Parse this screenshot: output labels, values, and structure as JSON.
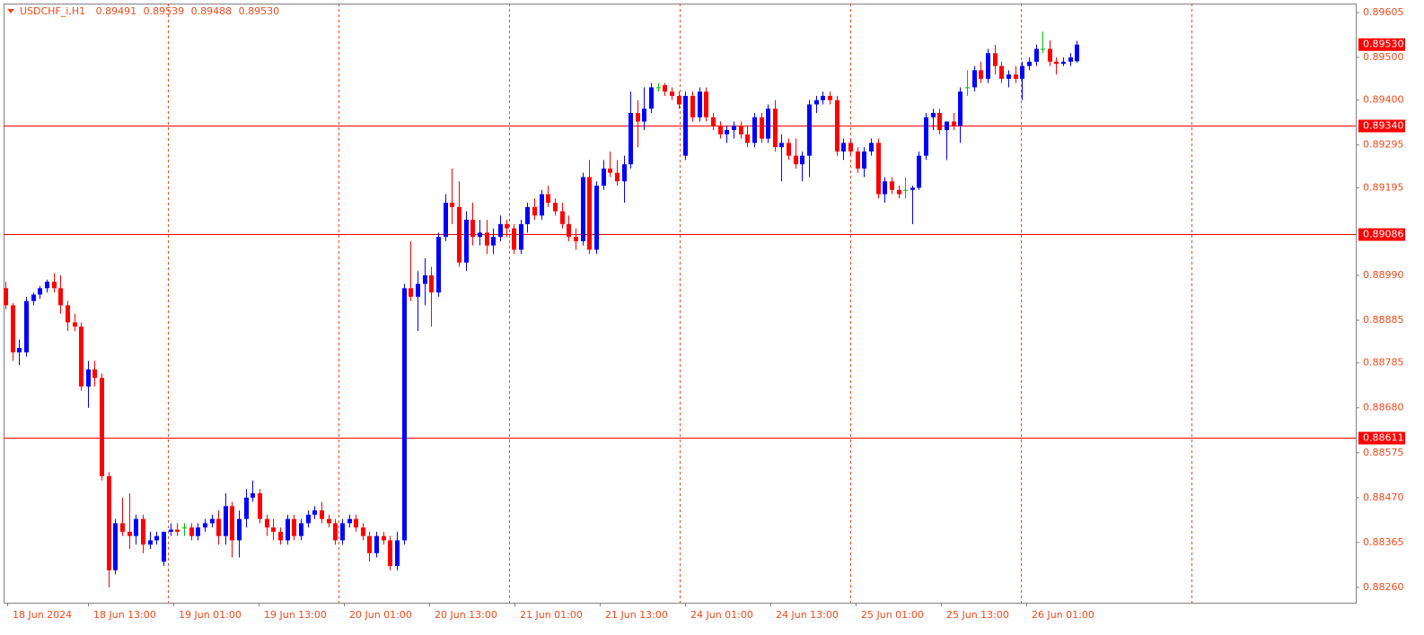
{
  "chart_data": {
    "type": "candlestick",
    "title": "USDCHF_i,H1",
    "last_close_label": "0.89530",
    "up_color": "#0000ff",
    "down_color": "#ff0000",
    "doji_color": "#00c000",
    "level_color": "#ff0000",
    "period_separators": true,
    "ylim": [
      0.88224,
      0.89626
    ],
    "yticks": [
      {
        "value": 0.89605,
        "label": "0.89605"
      },
      {
        "value": 0.895,
        "label": "0.89500"
      },
      {
        "value": 0.894,
        "label": "0.89400"
      },
      {
        "value": 0.89295,
        "label": "0.89295"
      },
      {
        "value": 0.89195,
        "label": "0.89195"
      },
      {
        "value": 0.8899,
        "label": "0.88990"
      },
      {
        "value": 0.88885,
        "label": "0.88885"
      },
      {
        "value": 0.88785,
        "label": "0.88785"
      },
      {
        "value": 0.8868,
        "label": "0.88680"
      },
      {
        "value": 0.88575,
        "label": "0.88575"
      },
      {
        "value": 0.8847,
        "label": "0.88470"
      },
      {
        "value": 0.88365,
        "label": "0.88365"
      },
      {
        "value": 0.8826,
        "label": "0.88260"
      }
    ],
    "levels": [
      {
        "value": 0.8934,
        "label": "0.89340"
      },
      {
        "value": 0.89086,
        "label": "0.89086"
      },
      {
        "value": 0.88611,
        "label": "0.88611"
      }
    ],
    "x_labels": [
      "18 Jun 2024",
      "18 Jun 13:00",
      "19 Jun 01:00",
      "19 Jun 13:00",
      "20 Jun 01:00",
      "20 Jun 13:00",
      "21 Jun 01:00",
      "21 Jun 13:00",
      "24 Jun 01:00",
      "24 Jun 13:00",
      "25 Jun 01:00",
      "25 Jun 13:00",
      "26 Jun 01:00"
    ],
    "candles": [
      [
        0.8896,
        0.88975,
        0.8891,
        0.8892
      ],
      [
        0.8892,
        0.88925,
        0.8879,
        0.8881
      ],
      [
        0.8881,
        0.8884,
        0.8878,
        0.8882
      ],
      [
        0.8881,
        0.8894,
        0.888,
        0.8893
      ],
      [
        0.8893,
        0.8895,
        0.8892,
        0.88945
      ],
      [
        0.88945,
        0.88965,
        0.88935,
        0.8896
      ],
      [
        0.8896,
        0.8898,
        0.8895,
        0.88975
      ],
      [
        0.88975,
        0.88995,
        0.8895,
        0.8896
      ],
      [
        0.8896,
        0.8899,
        0.889,
        0.8892
      ],
      [
        0.8892,
        0.8893,
        0.8886,
        0.8888
      ],
      [
        0.8888,
        0.889,
        0.8886,
        0.8887
      ],
      [
        0.8887,
        0.8888,
        0.8872,
        0.8873
      ],
      [
        0.8873,
        0.8879,
        0.8868,
        0.8877
      ],
      [
        0.8877,
        0.8879,
        0.8873,
        0.8875
      ],
      [
        0.8875,
        0.8876,
        0.8851,
        0.8852
      ],
      [
        0.8852,
        0.8853,
        0.8826,
        0.883
      ],
      [
        0.883,
        0.8842,
        0.8829,
        0.8841
      ],
      [
        0.8841,
        0.8847,
        0.8838,
        0.8839
      ],
      [
        0.8839,
        0.8848,
        0.8835,
        0.8838
      ],
      [
        0.8838,
        0.8843,
        0.8836,
        0.8842
      ],
      [
        0.8842,
        0.8843,
        0.8834,
        0.8836
      ],
      [
        0.8836,
        0.8839,
        0.8835,
        0.8837
      ],
      [
        0.8837,
        0.8839,
        0.8836,
        0.8838
      ],
      [
        0.8832,
        0.8839,
        0.8831,
        0.8839
      ],
      [
        0.8839,
        0.8841,
        0.8838,
        0.88395
      ],
      [
        0.88395,
        0.8841,
        0.8838,
        0.8839
      ],
      [
        0.884,
        0.8841,
        0.8838,
        0.884
      ],
      [
        0.884,
        0.8841,
        0.8837,
        0.8838
      ],
      [
        0.8838,
        0.8841,
        0.8837,
        0.884
      ],
      [
        0.884,
        0.8842,
        0.8839,
        0.8841
      ],
      [
        0.8841,
        0.8843,
        0.884,
        0.8842
      ],
      [
        0.8842,
        0.8844,
        0.8836,
        0.8838
      ],
      [
        0.8838,
        0.8848,
        0.8836,
        0.8845
      ],
      [
        0.8845,
        0.8846,
        0.8833,
        0.8837
      ],
      [
        0.8837,
        0.8844,
        0.8833,
        0.8842
      ],
      [
        0.8842,
        0.8849,
        0.884,
        0.8847
      ],
      [
        0.8847,
        0.8851,
        0.8846,
        0.8848
      ],
      [
        0.8848,
        0.8849,
        0.8841,
        0.8842
      ],
      [
        0.8842,
        0.8843,
        0.8838,
        0.884
      ],
      [
        0.884,
        0.8842,
        0.8837,
        0.8839
      ],
      [
        0.8839,
        0.884,
        0.8836,
        0.8837
      ],
      [
        0.8837,
        0.8843,
        0.8836,
        0.8842
      ],
      [
        0.8842,
        0.8843,
        0.8837,
        0.8838
      ],
      [
        0.8838,
        0.8842,
        0.8837,
        0.8841
      ],
      [
        0.8841,
        0.8844,
        0.884,
        0.8843
      ],
      [
        0.8843,
        0.8845,
        0.8842,
        0.8844
      ],
      [
        0.8844,
        0.8846,
        0.8841,
        0.8842
      ],
      [
        0.8842,
        0.8843,
        0.884,
        0.8841
      ],
      [
        0.8841,
        0.8842,
        0.8836,
        0.8837
      ],
      [
        0.8837,
        0.8842,
        0.8836,
        0.8841
      ],
      [
        0.8841,
        0.8843,
        0.884,
        0.8842
      ],
      [
        0.8842,
        0.8843,
        0.8839,
        0.884
      ],
      [
        0.884,
        0.8841,
        0.8837,
        0.8838
      ],
      [
        0.8838,
        0.8839,
        0.8832,
        0.8834
      ],
      [
        0.8834,
        0.8839,
        0.8833,
        0.8838
      ],
      [
        0.8838,
        0.8839,
        0.8836,
        0.8837
      ],
      [
        0.8837,
        0.8838,
        0.883,
        0.8831
      ],
      [
        0.8831,
        0.8839,
        0.883,
        0.8837
      ],
      [
        0.8837,
        0.8897,
        0.8836,
        0.8896
      ],
      [
        0.8896,
        0.8907,
        0.8893,
        0.8894
      ],
      [
        0.8894,
        0.89,
        0.8886,
        0.8897
      ],
      [
        0.8897,
        0.8903,
        0.8892,
        0.8899
      ],
      [
        0.8899,
        0.8901,
        0.8887,
        0.8895
      ],
      [
        0.8895,
        0.8909,
        0.8894,
        0.8908
      ],
      [
        0.8908,
        0.8918,
        0.8907,
        0.8916
      ],
      [
        0.8916,
        0.8924,
        0.8911,
        0.8915
      ],
      [
        0.8915,
        0.8921,
        0.8901,
        0.8902
      ],
      [
        0.8902,
        0.8914,
        0.89,
        0.8912
      ],
      [
        0.8912,
        0.8916,
        0.8906,
        0.8908
      ],
      [
        0.8908,
        0.8912,
        0.8906,
        0.8909
      ],
      [
        0.8909,
        0.8912,
        0.8904,
        0.8906
      ],
      [
        0.8906,
        0.891,
        0.8904,
        0.8908
      ],
      [
        0.8908,
        0.8913,
        0.8907,
        0.8911
      ],
      [
        0.8911,
        0.8912,
        0.8908,
        0.891
      ],
      [
        0.891,
        0.8911,
        0.8904,
        0.8905
      ],
      [
        0.8905,
        0.8912,
        0.8904,
        0.8911
      ],
      [
        0.8911,
        0.8916,
        0.8909,
        0.8915
      ],
      [
        0.8915,
        0.8917,
        0.8912,
        0.8913
      ],
      [
        0.8913,
        0.8919,
        0.8912,
        0.8918
      ],
      [
        0.8918,
        0.892,
        0.8915,
        0.8916
      ],
      [
        0.8916,
        0.8917,
        0.8913,
        0.8914
      ],
      [
        0.8914,
        0.8916,
        0.891,
        0.8911
      ],
      [
        0.8911,
        0.8913,
        0.8907,
        0.8908
      ],
      [
        0.8908,
        0.891,
        0.8905,
        0.8907
      ],
      [
        0.8907,
        0.8923,
        0.8906,
        0.8922
      ],
      [
        0.8922,
        0.8926,
        0.8904,
        0.8905
      ],
      [
        0.8905,
        0.8921,
        0.8904,
        0.892
      ],
      [
        0.892,
        0.8926,
        0.8919,
        0.8924
      ],
      [
        0.8924,
        0.8928,
        0.8922,
        0.8923
      ],
      [
        0.8923,
        0.8926,
        0.892,
        0.8921
      ],
      [
        0.8921,
        0.8927,
        0.8916,
        0.8925
      ],
      [
        0.8925,
        0.8942,
        0.8924,
        0.8937
      ],
      [
        0.8937,
        0.894,
        0.8929,
        0.8935
      ],
      [
        0.8935,
        0.8943,
        0.8933,
        0.8938
      ],
      [
        0.8938,
        0.8944,
        0.8937,
        0.8943
      ],
      [
        0.8943,
        0.8944,
        0.8942,
        0.8943
      ],
      [
        0.89435,
        0.8944,
        0.8941,
        0.8942
      ],
      [
        0.8942,
        0.8943,
        0.894,
        0.8941
      ],
      [
        0.8941,
        0.8942,
        0.8938,
        0.8939
      ],
      [
        0.8927,
        0.8942,
        0.8926,
        0.8941
      ],
      [
        0.8941,
        0.8942,
        0.8935,
        0.8936
      ],
      [
        0.8936,
        0.8943,
        0.8935,
        0.8942
      ],
      [
        0.8942,
        0.8943,
        0.8935,
        0.8936
      ],
      [
        0.8936,
        0.8937,
        0.8933,
        0.8934
      ],
      [
        0.8934,
        0.8935,
        0.8931,
        0.8932
      ],
      [
        0.8932,
        0.8934,
        0.893,
        0.8933
      ],
      [
        0.8933,
        0.8935,
        0.8931,
        0.8934
      ],
      [
        0.8934,
        0.8935,
        0.8931,
        0.8932
      ],
      [
        0.8932,
        0.8934,
        0.8929,
        0.893
      ],
      [
        0.893,
        0.8937,
        0.8929,
        0.8936
      ],
      [
        0.8936,
        0.8937,
        0.893,
        0.8931
      ],
      [
        0.8931,
        0.8939,
        0.893,
        0.8938
      ],
      [
        0.8938,
        0.894,
        0.8928,
        0.8929
      ],
      [
        0.8929,
        0.8932,
        0.8921,
        0.893
      ],
      [
        0.893,
        0.8931,
        0.8926,
        0.8927
      ],
      [
        0.8927,
        0.8931,
        0.8924,
        0.8925
      ],
      [
        0.8925,
        0.8928,
        0.8921,
        0.8927
      ],
      [
        0.8927,
        0.894,
        0.8922,
        0.8939
      ],
      [
        0.8939,
        0.8941,
        0.8937,
        0.894
      ],
      [
        0.894,
        0.8942,
        0.8939,
        0.8941
      ],
      [
        0.8941,
        0.8942,
        0.8939,
        0.894
      ],
      [
        0.894,
        0.8941,
        0.8927,
        0.8928
      ],
      [
        0.8928,
        0.8931,
        0.8926,
        0.893
      ],
      [
        0.893,
        0.8931,
        0.8927,
        0.8928
      ],
      [
        0.8928,
        0.8929,
        0.8923,
        0.8924
      ],
      [
        0.8924,
        0.8929,
        0.8922,
        0.8928
      ],
      [
        0.8928,
        0.8931,
        0.8927,
        0.893
      ],
      [
        0.893,
        0.8931,
        0.8917,
        0.8918
      ],
      [
        0.8918,
        0.8922,
        0.8916,
        0.8921
      ],
      [
        0.8921,
        0.8922,
        0.8918,
        0.8919
      ],
      [
        0.8919,
        0.892,
        0.8917,
        0.8918
      ],
      [
        0.8919,
        0.8922,
        0.8917,
        0.8919
      ],
      [
        0.8919,
        0.892,
        0.8911,
        0.89195
      ],
      [
        0.89195,
        0.8928,
        0.8919,
        0.8927
      ],
      [
        0.8927,
        0.8937,
        0.8926,
        0.8936
      ],
      [
        0.8936,
        0.8938,
        0.8933,
        0.8937
      ],
      [
        0.8937,
        0.8938,
        0.8932,
        0.8933
      ],
      [
        0.8933,
        0.8935,
        0.8926,
        0.8935
      ],
      [
        0.8935,
        0.8937,
        0.8933,
        0.8934
      ],
      [
        0.8934,
        0.8943,
        0.893,
        0.8942
      ],
      [
        0.8943,
        0.8947,
        0.8941,
        0.8943
      ],
      [
        0.8943,
        0.8948,
        0.8942,
        0.8947
      ],
      [
        0.8947,
        0.8949,
        0.8944,
        0.8945
      ],
      [
        0.8945,
        0.8952,
        0.8944,
        0.8951
      ],
      [
        0.8951,
        0.8953,
        0.8946,
        0.8948
      ],
      [
        0.8948,
        0.8949,
        0.8944,
        0.8945
      ],
      [
        0.8945,
        0.8947,
        0.8943,
        0.8946
      ],
      [
        0.8946,
        0.8948,
        0.8944,
        0.8945
      ],
      [
        0.8945,
        0.8949,
        0.894,
        0.8948
      ],
      [
        0.8948,
        0.895,
        0.8947,
        0.8949
      ],
      [
        0.8949,
        0.8953,
        0.8948,
        0.8952
      ],
      [
        0.8952,
        0.8956,
        0.8951,
        0.8952
      ],
      [
        0.8952,
        0.8954,
        0.8948,
        0.8949
      ],
      [
        0.8949,
        0.895,
        0.8946,
        0.89485
      ],
      [
        0.89485,
        0.895,
        0.8948,
        0.8949
      ],
      [
        0.8949,
        0.8951,
        0.8948,
        0.895
      ],
      [
        0.89491,
        0.89539,
        0.89488,
        0.8953
      ]
    ]
  }
}
